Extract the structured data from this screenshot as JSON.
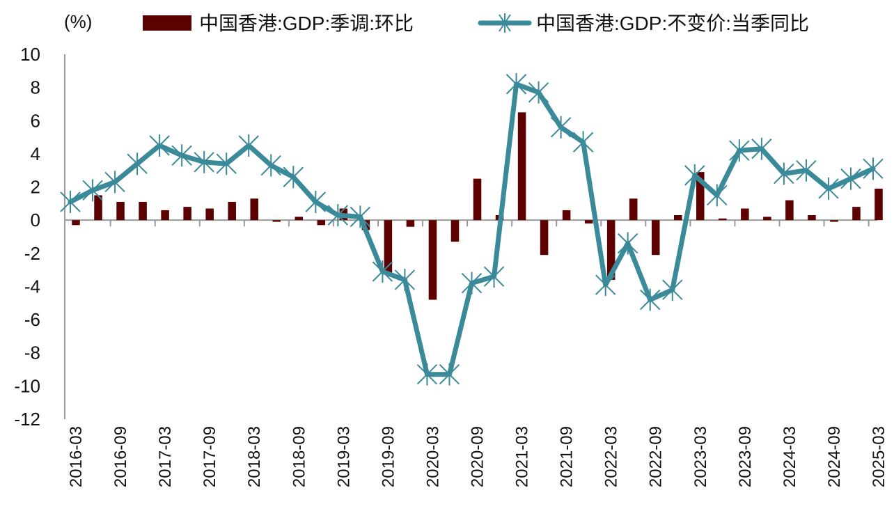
{
  "chart_data": {
    "type": "bar+line",
    "title": "",
    "unit_label": "(%)",
    "ylabel": "(%)",
    "xlabel": "",
    "ylim": [
      -12,
      10
    ],
    "yticks": [
      10,
      8,
      6,
      4,
      2,
      0,
      -2,
      -4,
      -6,
      -8,
      -10,
      -12
    ],
    "grid": false,
    "legend_position": "top",
    "colors": {
      "bar": "#5c0000",
      "line": "#3a8a9a",
      "axis": "#999999"
    },
    "x": [
      "2016-03",
      "2016-06",
      "2016-09",
      "2016-12",
      "2017-03",
      "2017-06",
      "2017-09",
      "2017-12",
      "2018-03",
      "2018-06",
      "2018-09",
      "2018-12",
      "2019-03",
      "2019-06",
      "2019-09",
      "2019-12",
      "2020-03",
      "2020-06",
      "2020-09",
      "2020-12",
      "2021-03",
      "2021-06",
      "2021-09",
      "2021-12",
      "2022-03",
      "2022-06",
      "2022-09",
      "2022-12",
      "2023-03",
      "2023-06",
      "2023-09",
      "2023-12",
      "2024-03",
      "2024-06",
      "2024-09",
      "2024-12",
      "2025-03"
    ],
    "xtick_labels": [
      "2016-03",
      "2016-09",
      "2017-03",
      "2017-09",
      "2018-03",
      "2018-09",
      "2019-03",
      "2019-09",
      "2020-03",
      "2020-09",
      "2021-03",
      "2021-09",
      "2022-03",
      "2022-09",
      "2023-03",
      "2023-09",
      "2024-03",
      "2024-09",
      "2025-03"
    ],
    "series": [
      {
        "name": "中国香港:GDP:季调:环比",
        "type": "bar",
        "values": [
          -0.3,
          1.5,
          1.1,
          1.1,
          0.6,
          0.8,
          0.7,
          1.1,
          1.3,
          -0.1,
          0.2,
          -0.3,
          0.7,
          -0.6,
          -3.2,
          -0.4,
          -4.8,
          -1.3,
          2.5,
          0.3,
          6.5,
          -2.1,
          0.6,
          -0.2,
          -3.6,
          1.3,
          -2.1,
          0.3,
          2.9,
          0.1,
          0.7,
          0.2,
          1.2,
          0.3,
          -0.1,
          0.8,
          1.9
        ]
      },
      {
        "name": "中国香港:GDP:不变价:当季同比",
        "type": "line",
        "marker": "asterisk",
        "values": [
          1.1,
          1.8,
          2.3,
          3.4,
          4.5,
          3.9,
          3.5,
          3.4,
          4.5,
          3.3,
          2.6,
          1.1,
          0.3,
          0.2,
          -3.1,
          -3.6,
          -9.3,
          -9.3,
          -3.8,
          -3.4,
          8.2,
          7.7,
          5.6,
          4.7,
          -3.9,
          -1.4,
          -4.8,
          -4.2,
          2.7,
          1.5,
          4.2,
          4.3,
          2.8,
          3.0,
          1.9,
          2.5,
          3.1
        ]
      }
    ]
  }
}
